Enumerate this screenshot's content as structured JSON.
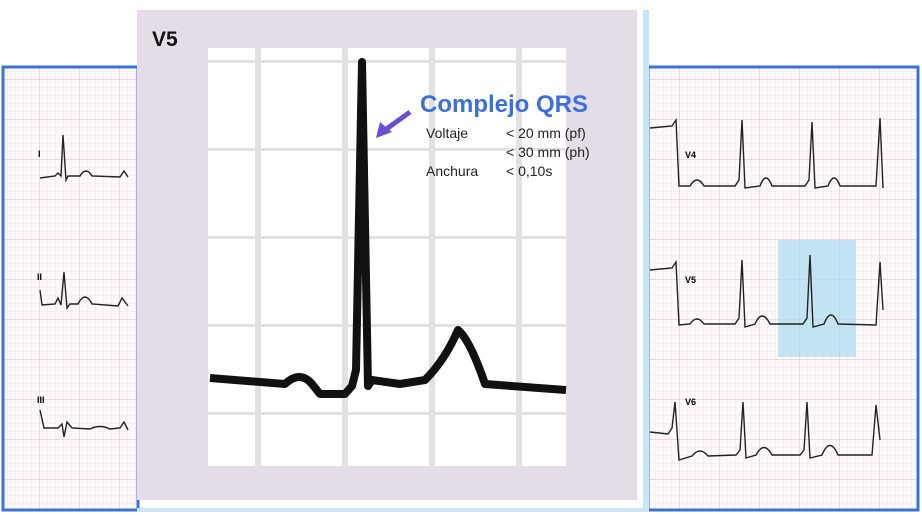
{
  "title": "V5",
  "annotation": {
    "heading": "Complejo QRS",
    "rows": [
      [
        "Voltaje",
        "< 20 mm (pf)"
      ],
      [
        "",
        "< 30 mm (ph)"
      ],
      [
        "Anchura",
        "< 0,10s"
      ]
    ]
  },
  "leads": {
    "left": [
      "I",
      "II",
      "III"
    ],
    "right": [
      "V4",
      "V5",
      "V6"
    ]
  }
}
